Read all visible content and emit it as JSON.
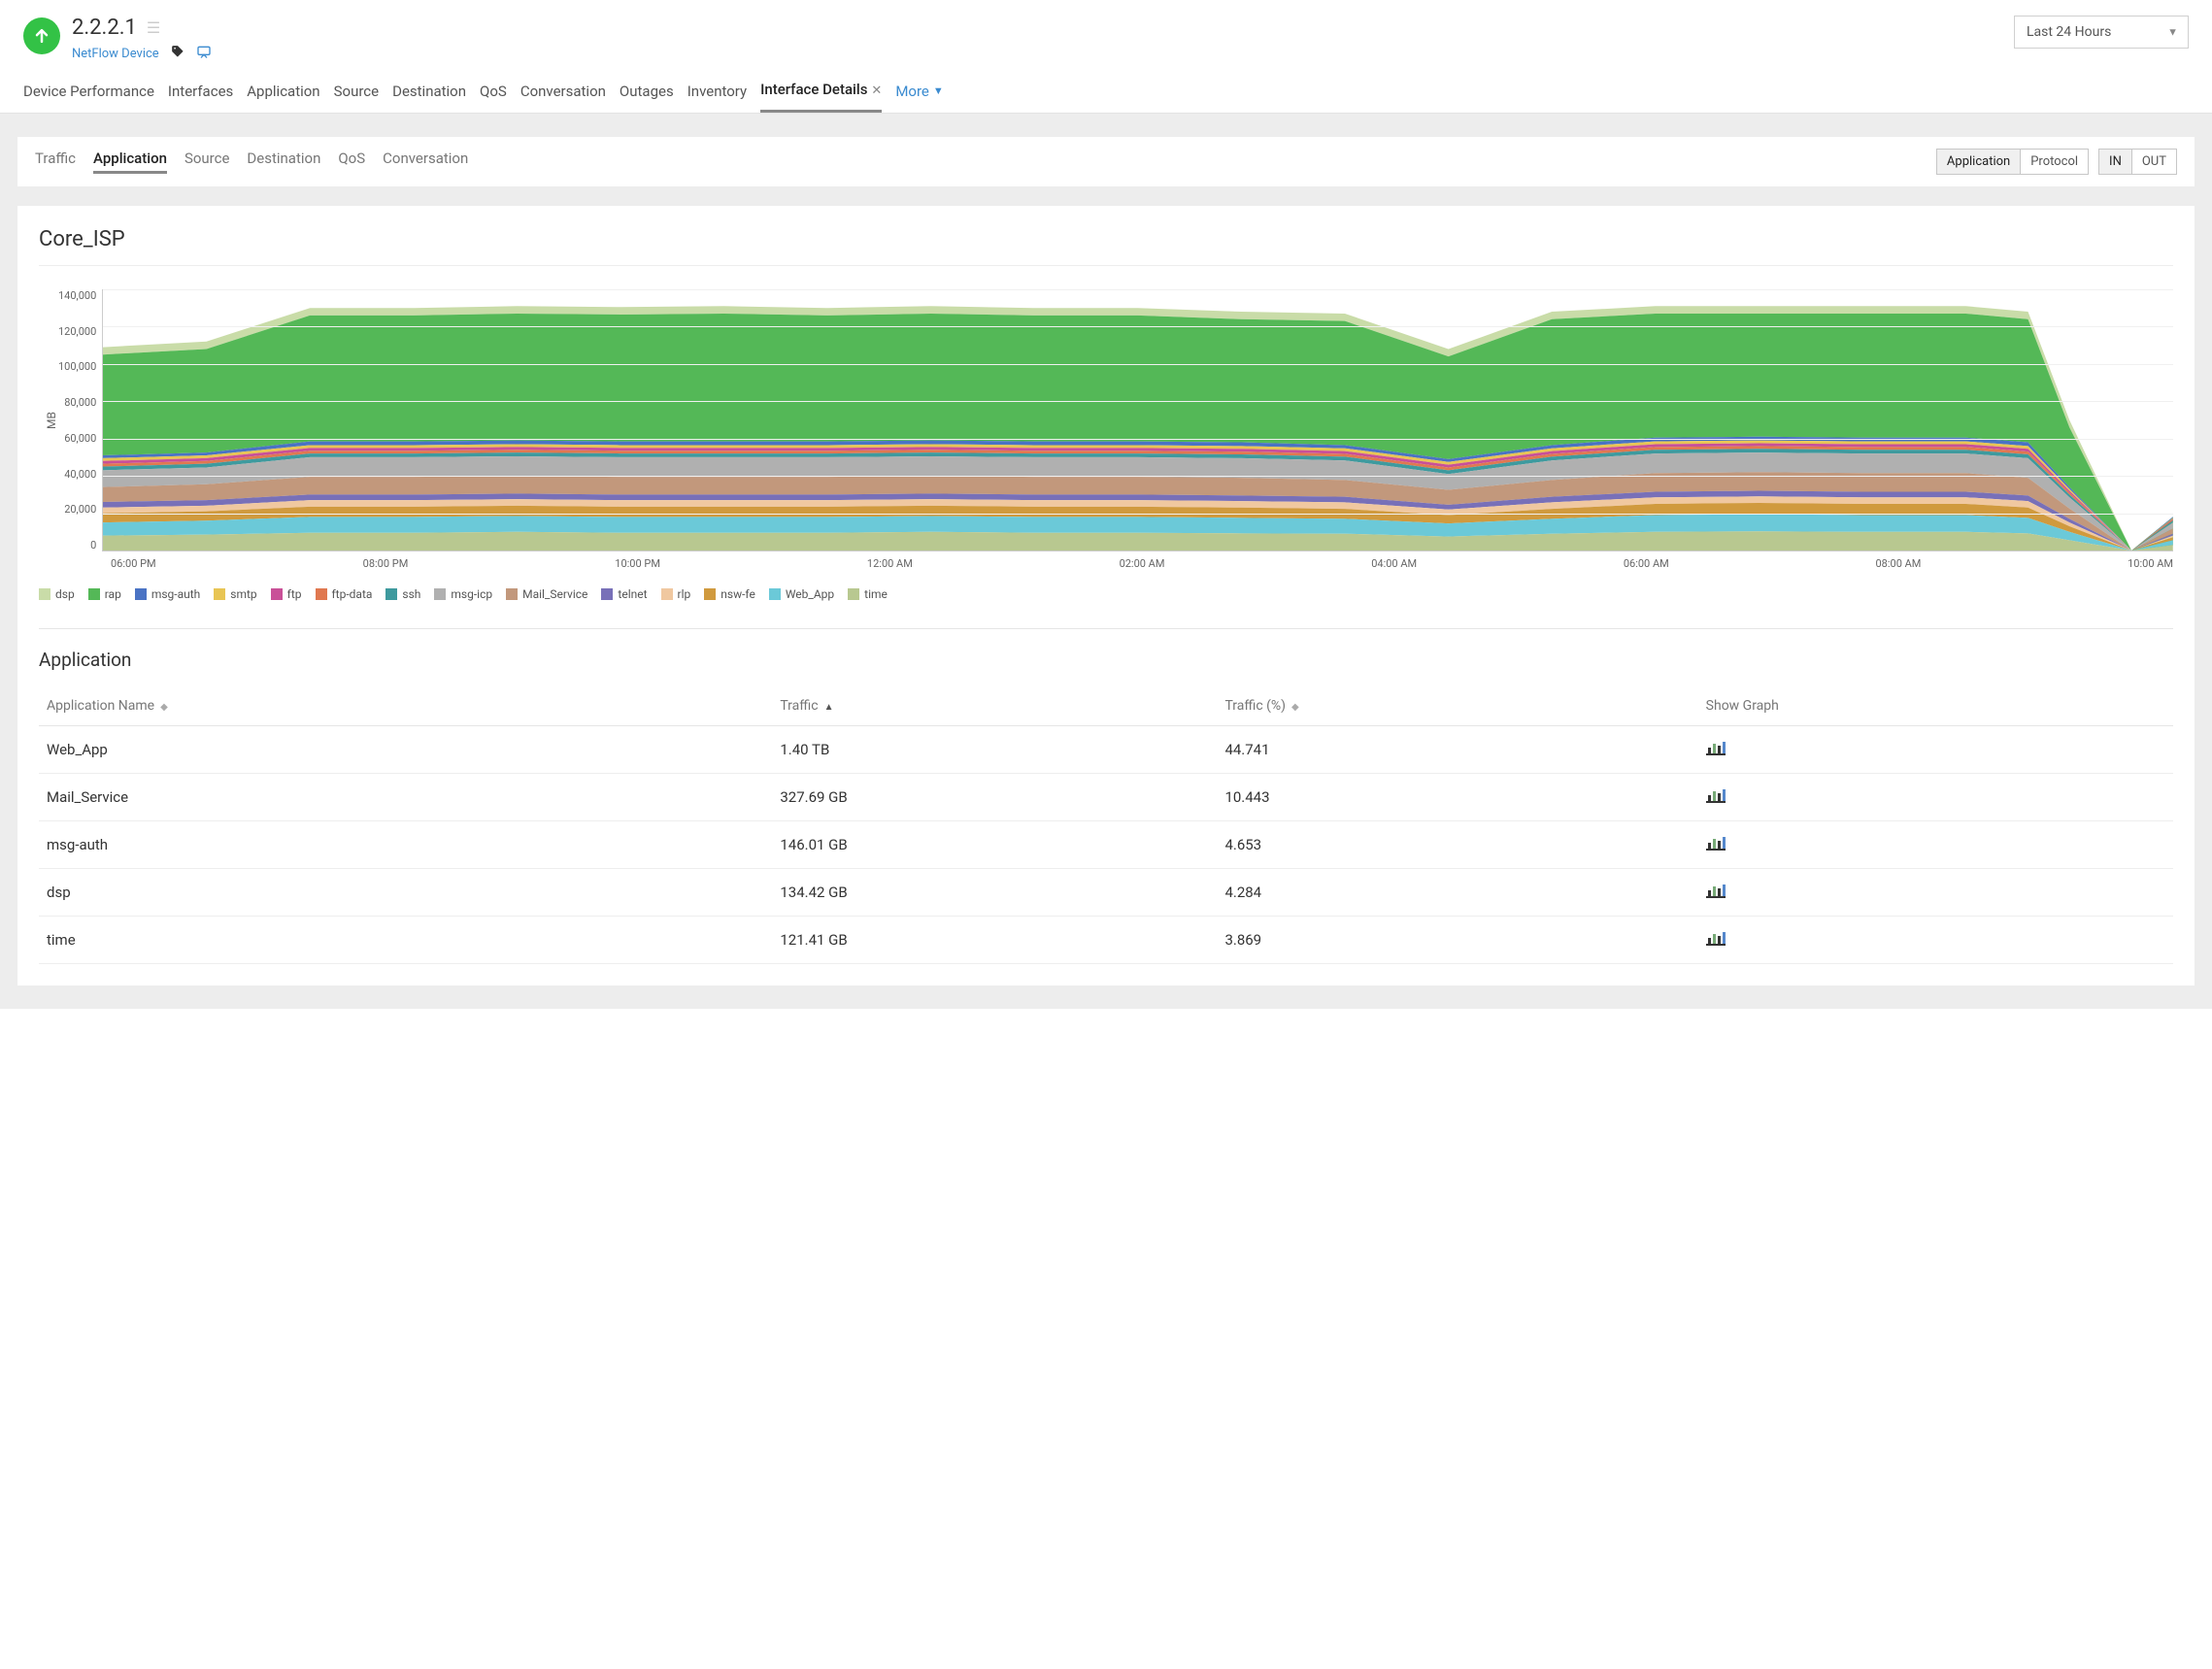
{
  "header": {
    "device_ip": "2.2.2.1",
    "device_type": "NetFlow Device",
    "status_color": "#33c246",
    "time_range": "Last 24 Hours"
  },
  "main_tabs": [
    "Device Performance",
    "Interfaces",
    "Application",
    "Source",
    "Destination",
    "QoS",
    "Conversation",
    "Outages",
    "Inventory"
  ],
  "active_main_tab": "Interface Details",
  "more_label": "More",
  "sub_tabs": [
    "Traffic",
    "Application",
    "Source",
    "Destination",
    "QoS",
    "Conversation"
  ],
  "active_sub_tab": "Application",
  "toggle1": {
    "options": [
      "Application",
      "Protocol"
    ],
    "active": "Application"
  },
  "toggle2": {
    "options": [
      "IN",
      "OUT"
    ],
    "active": "IN"
  },
  "chart": {
    "title": "Core_ISP",
    "y_label": "MB",
    "y_ticks": [
      "140,000",
      "120,000",
      "100,000",
      "80,000",
      "60,000",
      "40,000",
      "20,000",
      "0"
    ],
    "y_max": 140000,
    "x_ticks": [
      "06:00 PM",
      "08:00 PM",
      "10:00 PM",
      "12:00 AM",
      "02:00 AM",
      "04:00 AM",
      "06:00 AM",
      "08:00 AM",
      "10:00 AM"
    ],
    "x_points": [
      0,
      5,
      10,
      15,
      20,
      25,
      30,
      35,
      40,
      45,
      50,
      55,
      60,
      65,
      70,
      75,
      80,
      85,
      90,
      93,
      95,
      98,
      100
    ],
    "series": [
      {
        "name": "dsp",
        "color": "#c9dca8",
        "values": [
          109000,
          112000,
          130000,
          130000,
          131000,
          130500,
          131000,
          130000,
          131000,
          130000,
          130000,
          128000,
          127000,
          108000,
          128000,
          131000,
          131000,
          131000,
          131000,
          128000,
          70000,
          0,
          3000
        ]
      },
      {
        "name": "rap",
        "color": "#54b857",
        "values": [
          105000,
          108000,
          126000,
          126000,
          127000,
          126500,
          127000,
          126000,
          127000,
          126000,
          126000,
          124000,
          123000,
          104000,
          124000,
          127000,
          127000,
          127000,
          127000,
          124000,
          66000,
          0,
          2800
        ]
      },
      {
        "name": "msg-auth",
        "color": "#4a73c4",
        "values": [
          51000,
          52500,
          58500,
          58500,
          59000,
          58500,
          58500,
          58500,
          59000,
          58500,
          58500,
          58000,
          56500,
          49000,
          56500,
          60500,
          61000,
          60500,
          60500,
          58000,
          34000,
          0,
          18000
        ]
      },
      {
        "name": "smtp",
        "color": "#e8c554",
        "values": [
          49500,
          51000,
          56500,
          56500,
          57000,
          56500,
          56500,
          56500,
          57000,
          56500,
          56500,
          56000,
          54800,
          47500,
          54800,
          58500,
          59000,
          58500,
          58500,
          56000,
          33000,
          0,
          17500
        ]
      },
      {
        "name": "ftp",
        "color": "#c95098",
        "values": [
          48000,
          49500,
          55000,
          55000,
          55500,
          55000,
          55000,
          55000,
          55500,
          55000,
          55000,
          54500,
          53300,
          46000,
          53300,
          57000,
          57500,
          57000,
          57000,
          54500,
          32000,
          0,
          17000
        ]
      },
      {
        "name": "ftp-data",
        "color": "#e07850",
        "values": [
          46500,
          48000,
          53500,
          53500,
          54000,
          53500,
          53500,
          53500,
          54000,
          53500,
          53500,
          53000,
          51800,
          44500,
          51800,
          55500,
          56000,
          55500,
          55500,
          53000,
          31000,
          0,
          16500
        ]
      },
      {
        "name": "ssh",
        "color": "#3e9a9e",
        "values": [
          45000,
          46500,
          52000,
          52000,
          52500,
          52000,
          52000,
          52000,
          52500,
          52000,
          52000,
          51500,
          50300,
          43000,
          50300,
          54000,
          54500,
          54000,
          54000,
          51500,
          30000,
          0,
          16000
        ]
      },
      {
        "name": "msg-icp",
        "color": "#b0b0b0",
        "values": [
          43000,
          44500,
          50000,
          50000,
          50500,
          50000,
          50000,
          50000,
          50500,
          50000,
          50000,
          49500,
          48300,
          41000,
          48300,
          52000,
          52500,
          52000,
          52000,
          49500,
          28500,
          0,
          15000
        ]
      },
      {
        "name": "Mail_Service",
        "color": "#c2987c",
        "values": [
          34000,
          35500,
          39500,
          39500,
          40000,
          39500,
          39500,
          39500,
          40000,
          39500,
          39500,
          39000,
          37800,
          32500,
          37800,
          41500,
          42000,
          41500,
          41500,
          39000,
          22500,
          0,
          11800
        ]
      },
      {
        "name": "telnet",
        "color": "#7870b8",
        "values": [
          26000,
          27000,
          30000,
          30000,
          30500,
          30000,
          30000,
          30000,
          30500,
          30000,
          30000,
          29500,
          28800,
          24500,
          28800,
          31500,
          32000,
          31500,
          31500,
          29500,
          17000,
          0,
          9000
        ]
      },
      {
        "name": "rlp",
        "color": "#f0c8a0",
        "values": [
          23000,
          24000,
          27000,
          27000,
          27500,
          27000,
          27000,
          27000,
          27500,
          27000,
          27000,
          26500,
          25800,
          22000,
          25800,
          28500,
          29000,
          28500,
          28500,
          26500,
          15000,
          0,
          8000
        ]
      },
      {
        "name": "nsw-fe",
        "color": "#d09a3e",
        "values": [
          20000,
          21000,
          23500,
          23500,
          24000,
          23500,
          23500,
          23500,
          24000,
          23500,
          23500,
          23000,
          22300,
          19000,
          22300,
          25000,
          25500,
          25000,
          25000,
          23000,
          13000,
          0,
          7000
        ]
      },
      {
        "name": "Web_App",
        "color": "#6bc9d8",
        "values": [
          15000,
          16000,
          18000,
          18000,
          18500,
          18000,
          18000,
          18000,
          18500,
          18000,
          18000,
          17500,
          17000,
          14500,
          17000,
          19000,
          19500,
          19000,
          19000,
          17500,
          10000,
          0,
          5500
        ]
      },
      {
        "name": "time",
        "color": "#b8c890",
        "values": [
          8000,
          8500,
          9500,
          9500,
          10000,
          9500,
          9500,
          9500,
          10000,
          9500,
          9500,
          9200,
          9000,
          7500,
          9000,
          10000,
          10300,
          10000,
          10000,
          9200,
          5500,
          0,
          3000
        ]
      }
    ]
  },
  "table": {
    "title": "Application",
    "columns": [
      "Application Name",
      "Traffic",
      "Traffic (%)",
      "Show Graph"
    ],
    "sort_col": 1,
    "sort_dir": "asc",
    "rows": [
      {
        "name": "Web_App",
        "traffic": "1.40 TB",
        "pct": "44.741"
      },
      {
        "name": "Mail_Service",
        "traffic": "327.69 GB",
        "pct": "10.443"
      },
      {
        "name": "msg-auth",
        "traffic": "146.01 GB",
        "pct": "4.653"
      },
      {
        "name": "dsp",
        "traffic": "134.42 GB",
        "pct": "4.284"
      },
      {
        "name": "time",
        "traffic": "121.41 GB",
        "pct": "3.869"
      }
    ]
  }
}
